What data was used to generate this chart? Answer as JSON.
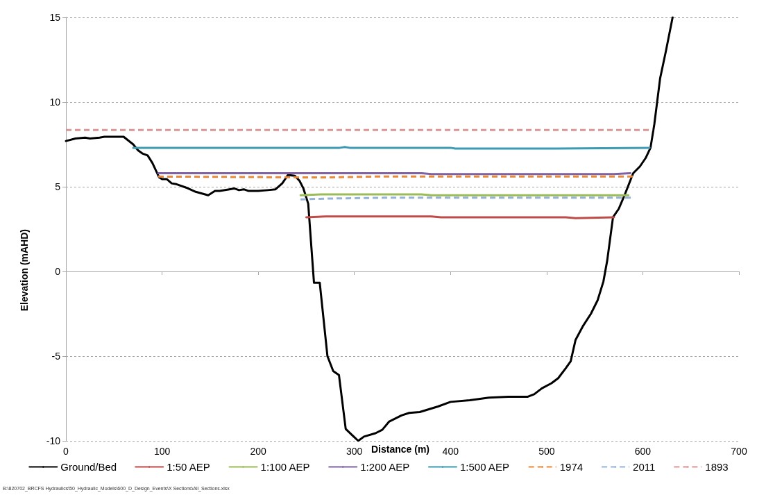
{
  "chart_data": {
    "type": "line",
    "xlabel": "Distance (m)",
    "ylabel": "Elevation (mAHD)",
    "xlim": [
      0,
      700
    ],
    "xticks": [
      0,
      100,
      200,
      300,
      400,
      500,
      600,
      700
    ],
    "ylim": [
      -10,
      15
    ],
    "yticks": [
      -10,
      -5,
      0,
      5,
      10,
      15
    ],
    "grid": "y",
    "legend": "bottom",
    "marker": "none",
    "annotations": [
      "B:\\820702_BRCFS Hydraulics\\50_Hydraulic_Models\\600_D_Design_Events\\X Sections\\All_Sections.xlsx"
    ],
    "series": [
      {
        "name": "Ground/Bed",
        "color": "#000000",
        "line_style": "solid",
        "x": [
          0,
          10,
          20,
          25,
          35,
          40,
          60,
          70,
          75,
          80,
          85,
          90,
          97,
          100,
          105,
          110,
          115,
          125,
          135,
          148,
          155,
          160,
          170,
          175,
          180,
          185,
          190,
          200,
          210,
          218,
          225,
          231,
          238,
          243,
          247,
          252,
          258,
          264,
          272,
          278,
          284,
          291,
          304,
          310,
          322,
          329,
          336,
          349,
          357,
          368,
          387,
          400,
          420,
          440,
          460,
          480,
          487,
          495,
          505,
          512,
          520,
          525,
          530,
          538,
          546,
          553,
          559,
          563,
          569,
          575,
          581,
          590,
          597,
          603,
          608,
          612,
          618,
          624,
          631
        ],
        "values": [
          7.7,
          7.85,
          7.9,
          7.85,
          7.9,
          7.95,
          7.95,
          7.5,
          7.15,
          6.95,
          6.85,
          6.4,
          5.55,
          5.45,
          5.45,
          5.2,
          5.15,
          4.95,
          4.7,
          4.5,
          4.75,
          4.75,
          4.85,
          4.9,
          4.8,
          4.85,
          4.75,
          4.75,
          4.8,
          4.85,
          5.2,
          5.7,
          5.65,
          5.35,
          4.9,
          4.0,
          -0.67,
          -0.67,
          -5.0,
          -5.88,
          -6.12,
          -9.3,
          -10.0,
          -9.75,
          -9.55,
          -9.35,
          -8.87,
          -8.5,
          -8.35,
          -8.3,
          -7.97,
          -7.7,
          -7.6,
          -7.45,
          -7.4,
          -7.4,
          -7.25,
          -6.9,
          -6.6,
          -6.3,
          -5.7,
          -5.3,
          -4.05,
          -3.2,
          -2.5,
          -1.7,
          -0.6,
          0.65,
          3.2,
          3.7,
          4.5,
          5.8,
          6.2,
          6.7,
          7.3,
          8.7,
          11.4,
          13.0,
          15.0
        ]
      },
      {
        "name": "1:50 AEP",
        "color": "#be4b48",
        "line_style": "solid",
        "x": [
          250,
          270,
          380,
          390,
          520,
          530,
          570
        ],
        "values": [
          3.2,
          3.25,
          3.25,
          3.2,
          3.2,
          3.15,
          3.2
        ]
      },
      {
        "name": "1:100 AEP",
        "color": "#9bbb59",
        "line_style": "solid",
        "x": [
          244,
          265,
          370,
          380,
          585
        ],
        "values": [
          4.5,
          4.55,
          4.55,
          4.5,
          4.5
        ]
      },
      {
        "name": "1:200 AEP",
        "color": "#7e62a1",
        "line_style": "solid",
        "x": [
          96,
          370,
          380,
          570,
          587
        ],
        "values": [
          5.8,
          5.8,
          5.75,
          5.75,
          5.8
        ]
      },
      {
        "name": "1:500 AEP",
        "color": "#3c9ab2",
        "line_style": "solid",
        "x": [
          70,
          285,
          290,
          295,
          400,
          405,
          470,
          510,
          607
        ],
        "values": [
          7.3,
          7.3,
          7.35,
          7.3,
          7.3,
          7.25,
          7.25,
          7.25,
          7.3
        ]
      },
      {
        "name": "1974",
        "color": "#e8893a",
        "line_style": "dashed",
        "x": [
          96,
          270,
          320,
          400,
          590
        ],
        "values": [
          5.6,
          5.55,
          5.6,
          5.6,
          5.6
        ]
      },
      {
        "name": "2011",
        "color": "#95b3d7",
        "line_style": "dashed",
        "x": [
          244,
          270,
          330,
          590
        ],
        "values": [
          4.25,
          4.3,
          4.35,
          4.35
        ]
      },
      {
        "name": "1893",
        "color": "#d99694",
        "line_style": "dashed",
        "x": [
          0,
          610
        ],
        "values": [
          8.35,
          8.35
        ]
      }
    ]
  }
}
